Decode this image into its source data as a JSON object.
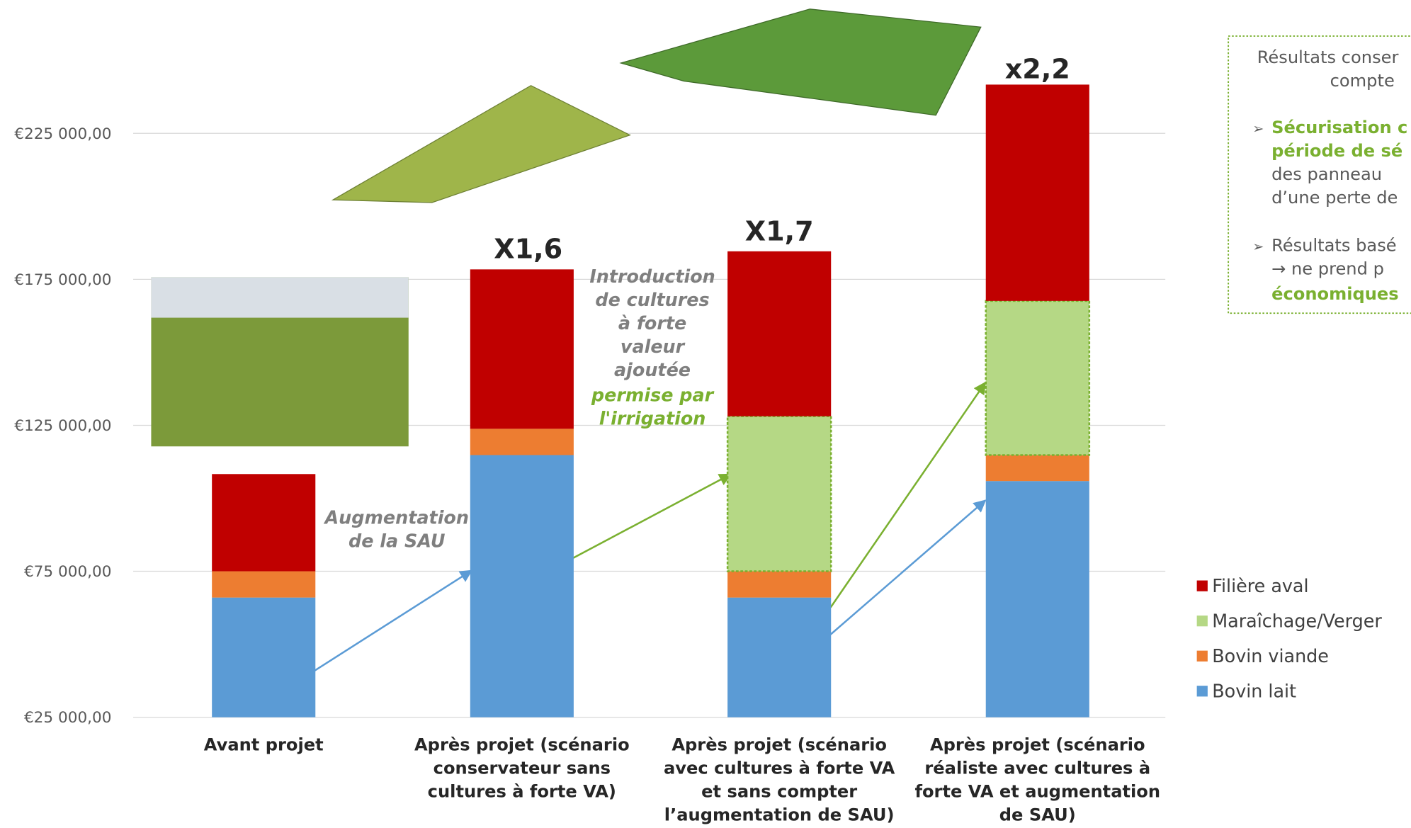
{
  "chart_data": {
    "type": "stacked-bar",
    "categories": [
      "Avant projet",
      "Après projet (scénario conservateur sans cultures à forte VA)",
      "Après projet (scénario avec cultures à forte VA et sans compter l’augmentation de SAU)",
      "Après projet (scénario réaliste avec cultures à forte VA et augmentation de SAU)"
    ],
    "series": [
      {
        "name": "Bovin lait",
        "color": "#5b9bd5",
        "values": [
          66000,
          114800,
          66000,
          105900
        ]
      },
      {
        "name": "Bovin viande",
        "color": "#ed7d31",
        "values": [
          9000,
          9000,
          9000,
          8900
        ]
      },
      {
        "name": "Maraîchage/Verger",
        "color": "#b5d885",
        "values": [
          0,
          0,
          53100,
          52800
        ]
      },
      {
        "name": "Filière aval",
        "color": "#c00000",
        "values": [
          33300,
          54600,
          56500,
          74100
        ]
      }
    ],
    "ylim": [
      25000,
      250000
    ],
    "yticks": [
      {
        "value": 25000,
        "label": "€25 000,00"
      },
      {
        "value": 75000,
        "label": "€75 000,00"
      },
      {
        "value": 125000,
        "label": "€125 000,00"
      },
      {
        "value": 175000,
        "label": "€175 000,00"
      },
      {
        "value": 225000,
        "label": "€225 000,00"
      }
    ],
    "grid": true,
    "multipliers": [
      "X1,6",
      "X1,7",
      "x2,2"
    ],
    "annotations": [
      "Augmentation de la SAU",
      "Introduction de cultures à forte valeur ajoutée",
      "permise par l'irrigation"
    ],
    "notes": [
      "Résultats conser",
      "compte",
      "Sécurisation c",
      "période de sé",
      "des panneau",
      "d’une perte de",
      "Résultats basé",
      "→ ne prend p",
      "économiques"
    ]
  }
}
